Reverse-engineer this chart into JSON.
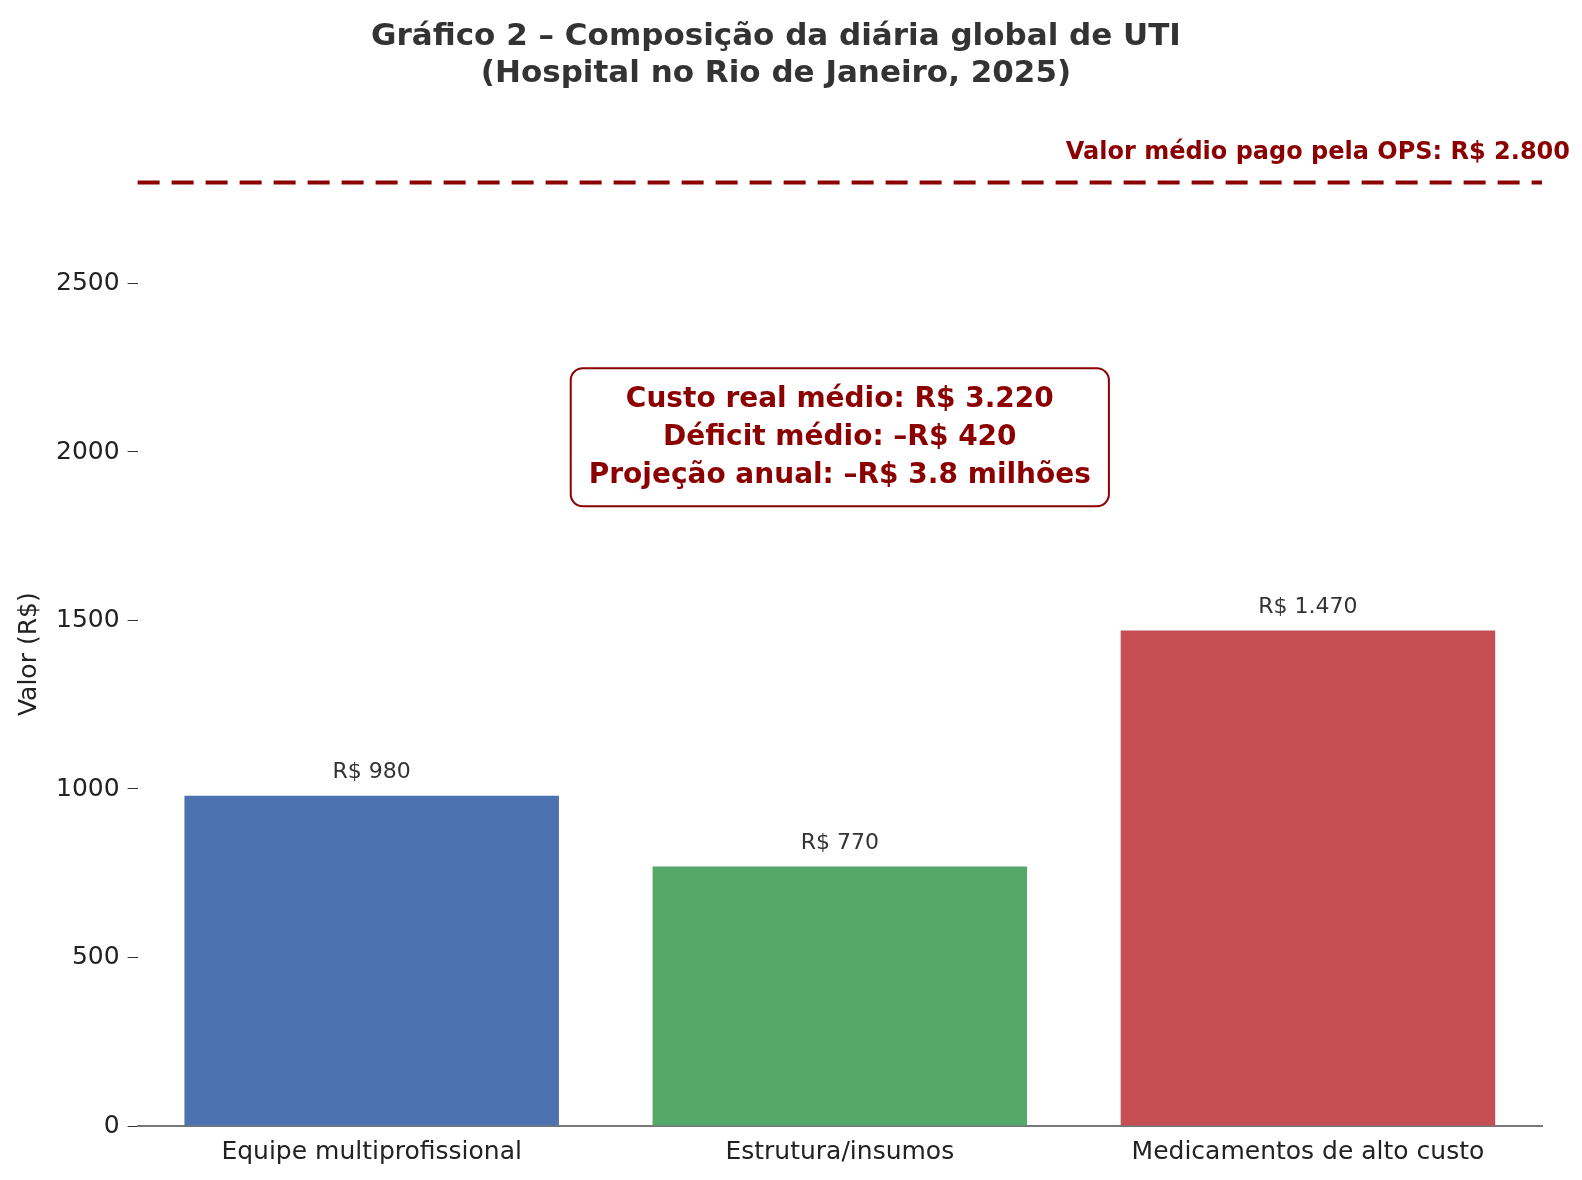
{
  "chart_data": {
    "type": "bar",
    "title": "Gráfico 2 – Composição da diária global de UTI\n(Hospital no Rio de Janeiro, 2025)",
    "ylabel": "Valor (R$)",
    "categories": [
      "Equipe multiprofissional",
      "Estrutura/insumos",
      "Medicamentos de alto custo"
    ],
    "values": [
      980,
      770,
      1470
    ],
    "colors": [
      "#4c72b0",
      "#55a868",
      "#c44e52"
    ],
    "value_labels": [
      "R$ 980",
      "R$ 770",
      "R$ 1.470"
    ],
    "ylim": [
      0,
      2800
    ],
    "yticks": [
      0,
      500,
      1000,
      1500,
      2000,
      2500
    ],
    "grid": false,
    "legend": false,
    "ref_lines": [
      {
        "axis": "y",
        "value": 2800,
        "label": "Valor médio pago pela OPS: R$ 2.800",
        "color": "#8b0000",
        "line_style": "dashed"
      }
    ],
    "annotations": [
      "Custo real médio: R$ 3.220\nDéficit médio: –R$ 420\nProjeção anual: –R$ 3.8 milhões"
    ]
  }
}
